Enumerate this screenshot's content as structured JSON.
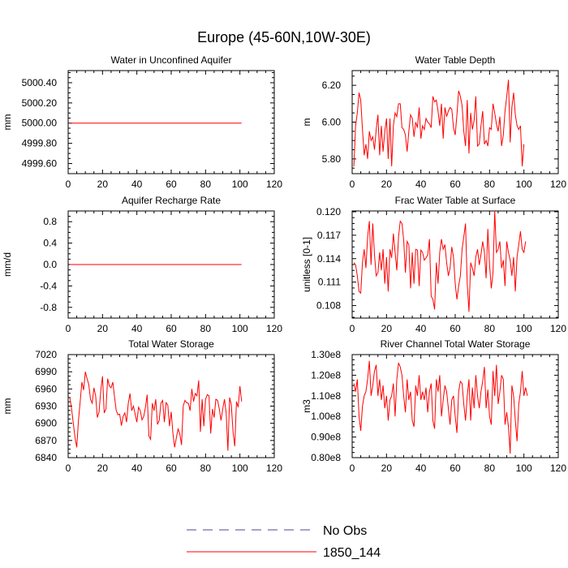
{
  "figure": {
    "title": "Europe (45-60N,10W-30E)"
  },
  "legend": [
    {
      "label": "No Obs",
      "color": "#4a4a8a",
      "dash": "dashed"
    },
    {
      "label": "1850_144",
      "color": "#ff0000",
      "dash": "solid"
    }
  ],
  "chart_data": [
    {
      "type": "line",
      "title": "Water in Unconfined Aquifer",
      "xlabel": "",
      "ylabel": "mm",
      "xlim": [
        0,
        120
      ],
      "ylim": [
        4999.5,
        5000.52
      ],
      "xticks": [
        0,
        20,
        40,
        60,
        80,
        100,
        120
      ],
      "xtick_labels": [
        "0",
        "20",
        "40",
        "60",
        "80",
        "100",
        "120"
      ],
      "yticks": [
        4999.6,
        4999.8,
        5000.0,
        5000.2,
        5000.4
      ],
      "ytick_labels": [
        "4999.60",
        "4999.80",
        "5000.00",
        "5000.20",
        "5000.40"
      ],
      "series": [
        {
          "name": "1850_144",
          "color": "#ff0000",
          "x_start": 1,
          "x_step": 1,
          "values": [
            5000,
            5000,
            5000,
            5000,
            5000,
            5000,
            5000,
            5000,
            5000,
            5000,
            5000,
            5000,
            5000,
            5000,
            5000,
            5000,
            5000,
            5000,
            5000,
            5000,
            5000,
            5000,
            5000,
            5000,
            5000,
            5000,
            5000,
            5000,
            5000,
            5000,
            5000,
            5000,
            5000,
            5000,
            5000,
            5000,
            5000,
            5000,
            5000,
            5000,
            5000,
            5000,
            5000,
            5000,
            5000,
            5000,
            5000,
            5000,
            5000,
            5000,
            5000,
            5000,
            5000,
            5000,
            5000,
            5000,
            5000,
            5000,
            5000,
            5000,
            5000,
            5000,
            5000,
            5000,
            5000,
            5000,
            5000,
            5000,
            5000,
            5000,
            5000,
            5000,
            5000,
            5000,
            5000,
            5000,
            5000,
            5000,
            5000,
            5000,
            5000,
            5000,
            5000,
            5000,
            5000,
            5000,
            5000,
            5000,
            5000,
            5000,
            5000,
            5000,
            5000,
            5000,
            5000,
            5000,
            5000,
            5000,
            5000,
            5000,
            5000
          ]
        }
      ]
    },
    {
      "type": "line",
      "title": "Water Table Depth",
      "xlabel": "",
      "ylabel": "m",
      "xlim": [
        0,
        120
      ],
      "ylim": [
        5.72,
        6.28
      ],
      "xticks": [
        0,
        20,
        40,
        60,
        80,
        100,
        120
      ],
      "xtick_labels": [
        "0",
        "20",
        "40",
        "60",
        "80",
        "100",
        "120"
      ],
      "yticks": [
        5.8,
        6.0,
        6.2
      ],
      "ytick_labels": [
        "5.80",
        "6.00",
        "6.20"
      ],
      "series": [
        {
          "name": "1850_144",
          "color": "#ff0000",
          "x_start": 1,
          "x_step": 1,
          "values": [
            5.76,
            5.98,
            6.05,
            6.16,
            6.12,
            5.96,
            5.82,
            5.88,
            5.8,
            5.95,
            5.9,
            5.92,
            5.85,
            5.96,
            6.04,
            5.82,
            5.98,
            5.84,
            5.95,
            6.02,
            5.8,
            6.02,
            5.76,
            5.98,
            6.05,
            6.03,
            6.1,
            6.1,
            5.97,
            5.96,
            5.93,
            5.84,
            5.95,
            6.04,
            6.02,
            5.92,
            6.0,
            5.97,
            6.08,
            5.91,
            5.98,
            5.96,
            6.02,
            6.0,
            5.99,
            5.97,
            6.14,
            6.11,
            6.12,
            6.06,
            5.98,
            6.1,
            5.91,
            6.08,
            6.03,
            6.06,
            6.08,
            6.07,
            5.97,
            5.93,
            6.04,
            6.17,
            6.14,
            6.09,
            5.95,
            5.87,
            6.12,
            5.83,
            6.05,
            5.96,
            6.01,
            6.14,
            5.87,
            5.88,
            5.98,
            6.06,
            5.88,
            5.9,
            5.87,
            5.97,
            5.96,
            6.1,
            6.05,
            5.99,
            5.95,
            6.03,
            5.87,
            5.93,
            6.06,
            6.14,
            6.23,
            5.89,
            6.08,
            6.16,
            6.04,
            5.98,
            5.96,
            5.98,
            5.76,
            5.88
          ]
        }
      ]
    },
    {
      "type": "line",
      "title": "Aquifer Recharge Rate",
      "xlabel": "",
      "ylabel": "mm/d",
      "xlim": [
        0,
        120
      ],
      "ylim": [
        -1.0,
        1.0
      ],
      "xticks": [
        0,
        20,
        40,
        60,
        80,
        100,
        120
      ],
      "xtick_labels": [
        "0",
        "20",
        "40",
        "60",
        "80",
        "100",
        "120"
      ],
      "yticks": [
        -0.8,
        -0.4,
        0.0,
        0.4,
        0.8
      ],
      "ytick_labels": [
        "-0.8",
        "-0.4",
        "0.0",
        "0.4",
        "0.8"
      ],
      "series": [
        {
          "name": "1850_144",
          "color": "#ff0000",
          "x_start": 1,
          "x_step": 1,
          "values": [
            0,
            0,
            0,
            0,
            0,
            0,
            0,
            0,
            0,
            0,
            0,
            0,
            0,
            0,
            0,
            0,
            0,
            0,
            0,
            0,
            0,
            0,
            0,
            0,
            0,
            0,
            0,
            0,
            0,
            0,
            0,
            0,
            0,
            0,
            0,
            0,
            0,
            0,
            0,
            0,
            0,
            0,
            0,
            0,
            0,
            0,
            0,
            0,
            0,
            0,
            0,
            0,
            0,
            0,
            0,
            0,
            0,
            0,
            0,
            0,
            0,
            0,
            0,
            0,
            0,
            0,
            0,
            0,
            0,
            0,
            0,
            0,
            0,
            0,
            0,
            0,
            0,
            0,
            0,
            0,
            0,
            0,
            0,
            0,
            0,
            0,
            0,
            0,
            0,
            0,
            0,
            0,
            0,
            0,
            0,
            0,
            0,
            0,
            0,
            0,
            0
          ]
        }
      ]
    },
    {
      "type": "line",
      "title": "Frac Water Table at Surface",
      "xlabel": "",
      "ylabel": "unitless [0-1]",
      "xlim": [
        0,
        120
      ],
      "ylim": [
        0.1064,
        0.1201
      ],
      "xticks": [
        0,
        20,
        40,
        60,
        80,
        100,
        120
      ],
      "xtick_labels": [
        "0",
        "20",
        "40",
        "60",
        "80",
        "100",
        "120"
      ],
      "yticks": [
        0.108,
        0.111,
        0.114,
        0.117,
        0.12
      ],
      "ytick_labels": [
        "0.108",
        "0.111",
        "0.114",
        "0.117",
        "0.120"
      ],
      "series": [
        {
          "name": "1850_144",
          "color": "#ff0000",
          "x_start": 1,
          "x_step": 1,
          "values": [
            0.1135,
            0.1132,
            0.1118,
            0.1098,
            0.1096,
            0.1135,
            0.1152,
            0.1128,
            0.1168,
            0.1188,
            0.1132,
            0.1185,
            0.1145,
            0.1118,
            0.1122,
            0.1148,
            0.1125,
            0.1152,
            0.1108,
            0.1142,
            0.1098,
            0.1152,
            0.1141,
            0.1172,
            0.1148,
            0.1125,
            0.1168,
            0.1188,
            0.1185,
            0.1164,
            0.1122,
            0.1162,
            0.1158,
            0.1102,
            0.1148,
            0.1108,
            0.1152,
            0.1151,
            0.1105,
            0.1151,
            0.1148,
            0.1138,
            0.1141,
            0.1145,
            0.1165,
            0.1092,
            0.1088,
            0.1075,
            0.1135,
            0.1108,
            0.1148,
            0.1165,
            0.1152,
            0.1158,
            0.1135,
            0.1118,
            0.1128,
            0.1155,
            0.1142,
            0.1108,
            0.1088,
            0.1105,
            0.1118,
            0.1152,
            0.1168,
            0.1185,
            0.1108,
            0.1072,
            0.1135,
            0.1128,
            0.1118,
            0.1142,
            0.1152,
            0.1132,
            0.1145,
            0.1162,
            0.1148,
            0.1115,
            0.1178,
            0.1132,
            0.1102,
            0.1122,
            0.1201,
            0.1148,
            0.1152,
            0.1162,
            0.1128,
            0.1138,
            0.1105,
            0.1162,
            0.1148,
            0.1138,
            0.1118,
            0.1142,
            0.1098,
            0.1142,
            0.1158,
            0.1175,
            0.1152,
            0.1148,
            0.1162
          ]
        }
      ]
    },
    {
      "type": "line",
      "title": "Total Water Storage",
      "xlabel": "",
      "ylabel": "mm",
      "xlim": [
        0,
        120
      ],
      "ylim": [
        6840,
        7020
      ],
      "xticks": [
        0,
        20,
        40,
        60,
        80,
        100,
        120
      ],
      "xtick_labels": [
        "0",
        "20",
        "40",
        "60",
        "80",
        "100",
        "120"
      ],
      "yticks": [
        6840,
        6870,
        6900,
        6930,
        6960,
        6990,
        7020
      ],
      "ytick_labels": [
        "6840",
        "6870",
        "6900",
        "6930",
        "6960",
        "6990",
        "7020"
      ],
      "series": [
        {
          "name": "1850_144",
          "color": "#ff0000",
          "x_start": 1,
          "x_step": 1,
          "values": [
            6945,
            6925,
            6900,
            6875,
            6858,
            6905,
            6938,
            6972,
            6958,
            6990,
            6978,
            6968,
            6942,
            6935,
            6962,
            6948,
            6910,
            6920,
            6958,
            6982,
            6918,
            6925,
            6978,
            6965,
            6962,
            6972,
            6946,
            6922,
            6915,
            6916,
            6896,
            6912,
            6918,
            6902,
            6935,
            6952,
            6922,
            6930,
            6916,
            6902,
            6928,
            6922,
            6906,
            6912,
            6928,
            6950,
            6878,
            6872,
            6935,
            6922,
            6942,
            6898,
            6905,
            6935,
            6940,
            6902,
            6936,
            6932,
            6895,
            6920,
            6882,
            6858,
            6875,
            6890,
            6882,
            6862,
            6930,
            6940,
            6936,
            6935,
            6922,
            6960,
            6938,
            6952,
            6948,
            6975,
            6885,
            6942,
            6895,
            6942,
            6950,
            6948,
            6882,
            6925,
            6910,
            6942,
            6940,
            6925,
            6905,
            6925,
            6942,
            6918,
            6852,
            6945,
            6932,
            6885,
            6860,
            6938,
            6928,
            6965,
            6938
          ]
        }
      ]
    },
    {
      "type": "line",
      "title": "River Channel Total Water Storage",
      "xlabel": "",
      "ylabel": "m3",
      "xlim": [
        0,
        120
      ],
      "ylim": [
        80000000,
        130000000
      ],
      "xticks": [
        0,
        20,
        40,
        60,
        80,
        100,
        120
      ],
      "xtick_labels": [
        "0",
        "20",
        "40",
        "60",
        "80",
        "100",
        "120"
      ],
      "yticks": [
        80000000,
        90000000,
        100000000,
        110000000,
        120000000,
        130000000
      ],
      "ytick_labels": [
        "0.80e8",
        "0.90e8",
        "1.00e8",
        "1.10e8",
        "1.20e8",
        "1.30e8"
      ],
      "series": [
        {
          "name": "1850_144",
          "color": "#ff0000",
          "x_start": 1,
          "x_step": 1,
          "values": [
            116000000,
            112000000,
            118000000,
            100000000,
            93000000,
            105000000,
            110000000,
            112000000,
            118000000,
            127000000,
            110000000,
            115000000,
            122000000,
            125000000,
            110000000,
            118000000,
            108000000,
            115000000,
            104000000,
            110000000,
            98000000,
            108000000,
            110000000,
            116000000,
            100000000,
            118000000,
            126000000,
            124000000,
            120000000,
            110000000,
            102000000,
            118000000,
            108000000,
            112000000,
            98000000,
            95000000,
            115000000,
            110000000,
            120000000,
            108000000,
            112000000,
            108000000,
            114000000,
            102000000,
            112000000,
            116000000,
            98000000,
            94000000,
            118000000,
            112000000,
            120000000,
            100000000,
            108000000,
            115000000,
            112000000,
            104000000,
            96000000,
            108000000,
            110000000,
            100000000,
            92000000,
            112000000,
            117000000,
            116000000,
            106000000,
            98000000,
            110000000,
            118000000,
            98000000,
            114000000,
            104000000,
            120000000,
            110000000,
            104000000,
            112000000,
            117000000,
            124000000,
            104000000,
            113000000,
            100000000,
            96000000,
            122000000,
            110000000,
            125000000,
            106000000,
            112000000,
            120000000,
            118000000,
            96000000,
            102000000,
            95000000,
            82000000,
            115000000,
            110000000,
            98000000,
            88000000,
            106000000,
            112000000,
            122000000,
            110000000,
            114000000,
            110000000
          ]
        }
      ]
    }
  ]
}
